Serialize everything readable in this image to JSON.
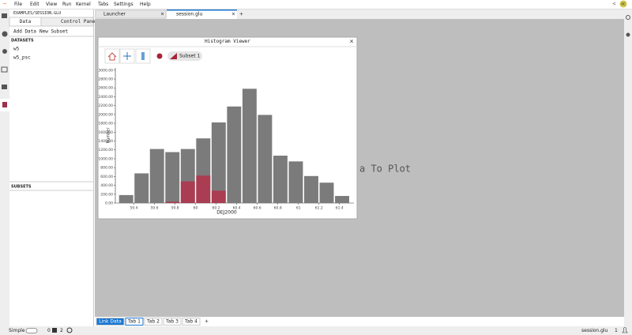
{
  "menu": [
    "File",
    "Edit",
    "View",
    "Run",
    "Kernel",
    "Tabs",
    "Settings",
    "Help"
  ],
  "user": "AC",
  "left_panel": {
    "path": "EXAMPLES/SESSION.GLU",
    "tabs": [
      "Data",
      "Control Pane"
    ],
    "buttons": [
      "Add Data",
      "New Subset"
    ],
    "datasets_header": "DATASETS",
    "datasets": [
      "w5",
      "w5_psc"
    ],
    "subsets_header": "SUBSETS"
  },
  "main_tabs": [
    "Launcher",
    "session.glu"
  ],
  "background_text": "a To Plot",
  "viewer": {
    "title": "Histogram Viewer",
    "subset": "Subset 1",
    "chart_data": {
      "type": "histogram",
      "x_label": "DEJ2000",
      "y_label": "Number",
      "bins": [
        59.25,
        59.4,
        59.55,
        59.7,
        59.85,
        60.0,
        60.15,
        60.3,
        60.45,
        60.6,
        60.75,
        60.9,
        61.05,
        61.2,
        61.35,
        61.5
      ],
      "series": [
        {
          "name": "w5",
          "color": "#7b7b7b",
          "values": [
            180,
            670,
            1220,
            1150,
            1220,
            1460,
            1820,
            2180,
            2580,
            1990,
            1070,
            940,
            610,
            460,
            160
          ]
        },
        {
          "name": "Subset 1",
          "color": "#b3324a",
          "values": [
            0,
            0,
            0,
            30,
            490,
            620,
            280,
            0,
            0,
            0,
            0,
            0,
            0,
            0,
            0
          ]
        }
      ],
      "xlim": [
        59.22,
        61.54
      ],
      "ylim": [
        0,
        3050
      ],
      "xticks": [
        59.4,
        59.6,
        59.8,
        60,
        60.2,
        60.4,
        60.6,
        60.8,
        61,
        61.2,
        61.4
      ],
      "yticks": [
        {
          "value": 0,
          "label": "0.00"
        },
        {
          "value": 200,
          "label": "200.00"
        },
        {
          "value": 400,
          "label": "400.00"
        },
        {
          "value": 600,
          "label": "600.00"
        },
        {
          "value": 800,
          "label": "800.00"
        },
        {
          "value": 1000,
          "label": "1000.00"
        },
        {
          "value": 1200,
          "label": "1200.00"
        },
        {
          "value": 1400,
          "label": "1400.00"
        },
        {
          "value": 1600,
          "label": "1600.00"
        },
        {
          "value": 1800,
          "label": "1800.00"
        },
        {
          "value": 2000,
          "label": "2000.00"
        },
        {
          "value": 2200,
          "label": "2200.00"
        },
        {
          "value": 2400,
          "label": "2400.00"
        },
        {
          "value": 2600,
          "label": "2600.00"
        },
        {
          "value": 2800,
          "label": "2800.00"
        },
        {
          "value": 3000,
          "label": "3000.00"
        }
      ]
    }
  },
  "bottom_tabs": [
    "Link Data",
    "Tab 1",
    "Tab 2",
    "Tab 3",
    "Tab 4"
  ],
  "status": {
    "mode": "Simple",
    "terminals": "0",
    "kernels": "2",
    "file": "session.glu",
    "line": "1"
  }
}
